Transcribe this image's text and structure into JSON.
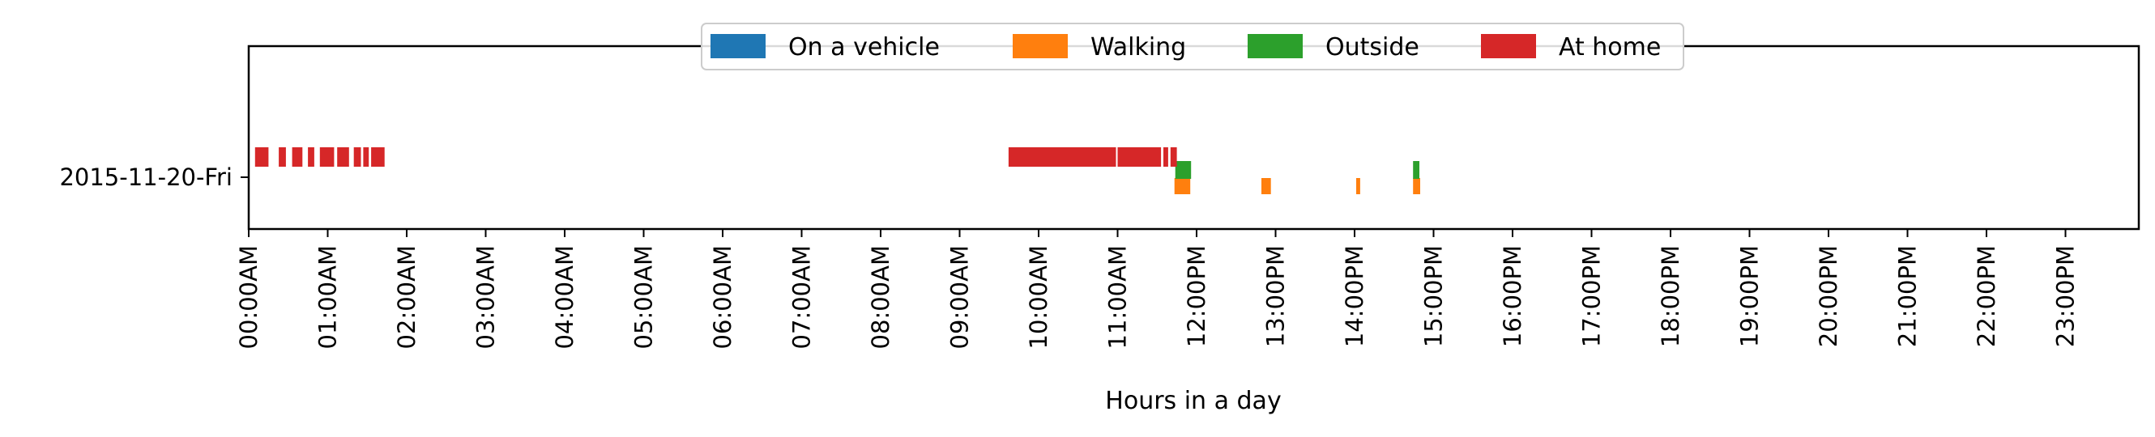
{
  "chart_data": {
    "type": "timeline",
    "title": "",
    "xlabel": "Hours in a day",
    "ylabel": "",
    "xlim": [
      0,
      24
    ],
    "categories": [
      "2015-11-20-Fri"
    ],
    "x_tick_labels": [
      "00:00AM",
      "01:00AM",
      "02:00AM",
      "03:00AM",
      "04:00AM",
      "05:00AM",
      "06:00AM",
      "07:00AM",
      "08:00AM",
      "09:00AM",
      "10:00AM",
      "11:00AM",
      "12:00PM",
      "13:00PM",
      "14:00PM",
      "15:00PM",
      "16:00PM",
      "17:00PM",
      "18:00PM",
      "19:00PM",
      "20:00PM",
      "21:00PM",
      "22:00PM",
      "23:00PM"
    ],
    "grid": false,
    "legend_position": "top-center",
    "series": [
      {
        "name": "On a vehicle",
        "color": "#1f77b4",
        "lane": 0,
        "intervals": []
      },
      {
        "name": "Walking",
        "color": "#ff7f0e",
        "lane": 0,
        "intervals": [
          [
            11.72,
            11.92
          ],
          [
            12.82,
            12.94
          ],
          [
            14.02,
            14.07
          ],
          [
            14.74,
            14.83
          ]
        ]
      },
      {
        "name": "Outside",
        "color": "#2ca02c",
        "lane": 1,
        "intervals": [
          [
            11.73,
            11.93
          ],
          [
            14.74,
            14.82
          ]
        ]
      },
      {
        "name": "At home",
        "color": "#d62728",
        "lane": 2,
        "intervals": [
          [
            0.08,
            0.25
          ],
          [
            0.38,
            0.47
          ],
          [
            0.55,
            0.68
          ],
          [
            0.75,
            0.83
          ],
          [
            0.9,
            1.08
          ],
          [
            1.12,
            1.27
          ],
          [
            1.33,
            1.42
          ],
          [
            1.45,
            1.52
          ],
          [
            1.55,
            1.72
          ],
          [
            9.62,
            10.98
          ],
          [
            11.0,
            11.55
          ],
          [
            11.58,
            11.64
          ],
          [
            11.67,
            11.75
          ]
        ]
      }
    ]
  }
}
